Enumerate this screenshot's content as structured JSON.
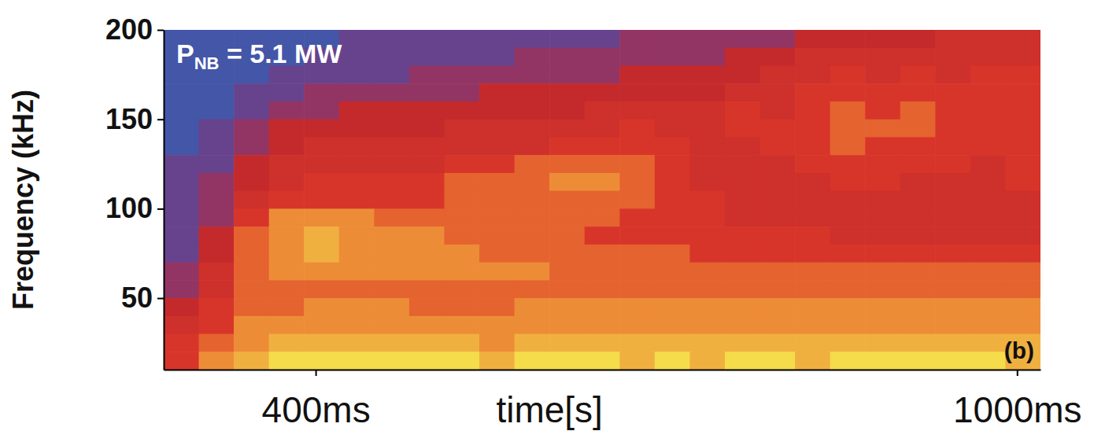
{
  "chart_data": {
    "type": "heatmap",
    "title": "PNB = 5.1 MW",
    "x_label": "time[s]",
    "y_label": "Frequency (kHz)",
    "annotations": [
      "(b)"
    ],
    "x": [
      285,
      315,
      345,
      375,
      405,
      435,
      465,
      495,
      525,
      555,
      585,
      615,
      645,
      675,
      705,
      735,
      765,
      795,
      825,
      855,
      885,
      915,
      945,
      975,
      1005
    ],
    "y": [
      195,
      185,
      175,
      165,
      155,
      145,
      135,
      125,
      115,
      105,
      95,
      85,
      75,
      65,
      55,
      45,
      35,
      25,
      15
    ],
    "cells": [
      [
        0,
        0,
        0,
        0,
        0,
        1,
        1,
        1,
        1,
        1,
        1,
        1,
        1,
        2,
        2,
        2,
        2,
        2,
        3,
        3,
        3,
        3,
        4,
        4,
        4
      ],
      [
        0,
        0,
        0,
        0,
        1,
        1,
        1,
        1,
        1,
        1,
        2,
        2,
        2,
        2,
        2,
        2,
        3,
        3,
        4,
        4,
        4,
        4,
        4,
        4,
        4
      ],
      [
        0,
        0,
        0,
        1,
        1,
        1,
        1,
        2,
        2,
        2,
        2,
        2,
        2,
        3,
        3,
        3,
        3,
        4,
        4,
        5,
        4,
        5,
        4,
        5,
        5
      ],
      [
        0,
        0,
        1,
        1,
        2,
        2,
        2,
        2,
        2,
        3,
        3,
        3,
        3,
        3,
        3,
        3,
        4,
        4,
        5,
        5,
        5,
        5,
        5,
        5,
        5
      ],
      [
        0,
        0,
        1,
        2,
        2,
        3,
        3,
        3,
        3,
        3,
        3,
        3,
        4,
        4,
        4,
        4,
        5,
        4,
        5,
        6,
        5,
        6,
        5,
        5,
        5
      ],
      [
        0,
        1,
        2,
        3,
        3,
        3,
        3,
        3,
        4,
        4,
        4,
        4,
        4,
        5,
        4,
        4,
        5,
        5,
        5,
        6,
        6,
        6,
        5,
        5,
        5
      ],
      [
        0,
        1,
        2,
        3,
        4,
        4,
        4,
        4,
        4,
        4,
        4,
        5,
        5,
        5,
        5,
        4,
        4,
        5,
        5,
        6,
        5,
        5,
        5,
        5,
        5
      ],
      [
        1,
        1,
        3,
        4,
        4,
        4,
        4,
        4,
        5,
        5,
        6,
        6,
        6,
        6,
        5,
        4,
        4,
        4,
        5,
        5,
        5,
        5,
        5,
        4,
        5
      ],
      [
        1,
        2,
        3,
        4,
        5,
        5,
        5,
        5,
        6,
        6,
        6,
        7,
        7,
        6,
        5,
        4,
        4,
        4,
        4,
        5,
        5,
        4,
        4,
        4,
        5
      ],
      [
        1,
        2,
        4,
        5,
        5,
        5,
        5,
        5,
        6,
        6,
        6,
        6,
        6,
        6,
        5,
        5,
        4,
        4,
        4,
        4,
        4,
        4,
        4,
        4,
        4
      ],
      [
        1,
        2,
        5,
        7,
        7,
        7,
        6,
        6,
        6,
        6,
        6,
        6,
        6,
        5,
        5,
        5,
        4,
        4,
        4,
        4,
        4,
        4,
        4,
        4,
        4
      ],
      [
        1,
        3,
        6,
        7,
        8,
        7,
        7,
        7,
        6,
        6,
        6,
        6,
        5,
        5,
        5,
        5,
        5,
        5,
        5,
        4,
        4,
        4,
        4,
        4,
        4
      ],
      [
        1,
        3,
        6,
        7,
        8,
        7,
        7,
        7,
        7,
        6,
        6,
        6,
        6,
        6,
        6,
        5,
        5,
        5,
        5,
        5,
        5,
        5,
        5,
        5,
        5
      ],
      [
        2,
        4,
        6,
        7,
        7,
        7,
        7,
        7,
        7,
        7,
        7,
        6,
        6,
        6,
        6,
        6,
        6,
        6,
        6,
        6,
        6,
        6,
        6,
        6,
        6
      ],
      [
        2,
        4,
        6,
        6,
        6,
        6,
        6,
        6,
        6,
        6,
        6,
        6,
        6,
        6,
        6,
        6,
        6,
        6,
        6,
        6,
        6,
        6,
        6,
        6,
        6
      ],
      [
        3,
        5,
        6,
        6,
        7,
        7,
        7,
        6,
        6,
        6,
        7,
        7,
        7,
        7,
        7,
        7,
        7,
        7,
        7,
        7,
        7,
        7,
        7,
        7,
        7
      ],
      [
        4,
        5,
        7,
        7,
        7,
        7,
        7,
        7,
        7,
        7,
        7,
        7,
        7,
        7,
        7,
        7,
        7,
        7,
        7,
        7,
        7,
        7,
        7,
        7,
        7
      ],
      [
        5,
        6,
        7,
        8,
        8,
        8,
        8,
        8,
        8,
        7,
        8,
        8,
        8,
        8,
        8,
        8,
        8,
        8,
        8,
        8,
        8,
        8,
        8,
        8,
        8
      ],
      [
        5,
        7,
        8,
        9,
        9,
        9,
        9,
        9,
        9,
        8,
        9,
        9,
        9,
        8,
        9,
        8,
        9,
        9,
        8,
        9,
        9,
        9,
        9,
        9,
        8
      ]
    ],
    "zlim": [
      0,
      10
    ],
    "xlim": [
      270,
      1020
    ],
    "ylim": [
      10,
      200
    ],
    "xticks": [
      {
        "value": 400,
        "label": "400ms"
      },
      {
        "value": 1000,
        "label": "1000ms"
      }
    ],
    "yticks": [
      50,
      100,
      150,
      200
    ],
    "grid": false
  }
}
